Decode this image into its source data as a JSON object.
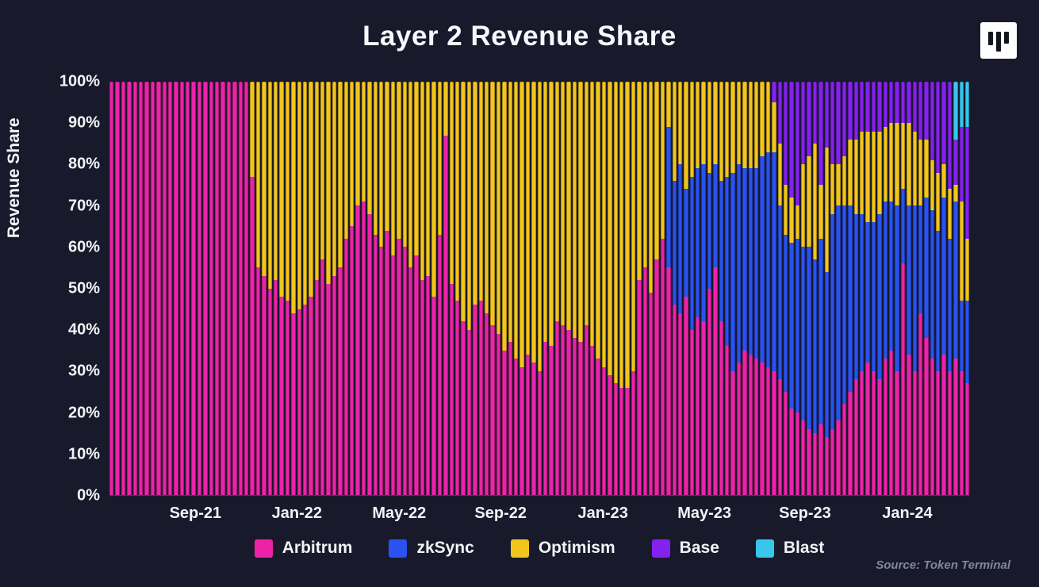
{
  "header": {
    "title": "Layer 2 Revenue Share",
    "logo_icon": "token-terminal-logo"
  },
  "footer": {
    "source": "Source: Token Terminal"
  },
  "colors": {
    "background": "#181A2C",
    "text": "#F7F8FC",
    "muted_text": "#80869C",
    "arbitrum": "#EC23A7",
    "zksync": "#2A52F0",
    "optimism": "#F2C51D",
    "base": "#8521EE",
    "blast": "#38C6EC"
  },
  "chart_data": {
    "type": "bar",
    "stacked": true,
    "stack_unit": "percent-of-total",
    "interval": "weekly",
    "title": "Layer 2 Revenue Share",
    "xlabel": "",
    "ylabel": "Revenue Share",
    "ylim": [
      0,
      100
    ],
    "grid": false,
    "legend_position": "bottom",
    "x_range": [
      "Jun-21",
      "Mar-24"
    ],
    "y_ticks": [
      "100%",
      "90%",
      "80%",
      "70%",
      "60%",
      "50%",
      "40%",
      "30%",
      "20%",
      "10%",
      "0%"
    ],
    "x_ticks": [
      {
        "label": "Sep-21",
        "pos": 0.1
      },
      {
        "label": "Jan-22",
        "pos": 0.218
      },
      {
        "label": "May-22",
        "pos": 0.337
      },
      {
        "label": "Sep-22",
        "pos": 0.455
      },
      {
        "label": "Jan-23",
        "pos": 0.574
      },
      {
        "label": "May-23",
        "pos": 0.692
      },
      {
        "label": "Sep-23",
        "pos": 0.809
      },
      {
        "label": "Jan-24",
        "pos": 0.928
      }
    ],
    "series": [
      {
        "name": "Arbitrum",
        "color": "#EC23A7",
        "values": [
          100,
          100,
          100,
          100,
          100,
          100,
          100,
          100,
          100,
          100,
          100,
          100,
          100,
          100,
          100,
          100,
          100,
          100,
          100,
          100,
          100,
          100,
          100,
          100,
          77,
          55,
          53,
          50,
          52,
          48,
          47,
          44,
          45,
          46,
          48,
          52,
          57,
          51,
          53,
          55,
          62,
          65,
          70,
          71,
          68,
          63,
          60,
          64,
          58,
          62,
          60,
          55,
          58,
          52,
          53,
          48,
          63,
          87,
          51,
          47,
          42,
          40,
          46,
          47,
          44,
          41,
          39,
          35,
          37,
          33,
          31,
          34,
          32,
          30,
          37,
          36,
          42,
          41,
          40,
          38,
          37,
          41,
          36,
          33,
          31,
          29,
          27,
          26,
          26,
          30,
          52,
          55,
          49,
          57,
          62,
          55,
          46,
          44,
          48,
          40,
          43,
          42,
          50,
          55,
          42,
          36,
          30,
          32,
          35,
          34,
          33,
          32,
          31,
          30,
          28,
          25,
          21,
          20,
          18,
          16,
          15,
          17,
          14,
          16,
          18,
          22,
          25,
          28,
          30,
          32,
          30,
          28,
          33,
          35,
          30,
          56,
          34,
          30,
          44,
          38,
          33,
          30,
          34,
          30,
          33,
          30,
          27
        ]
      },
      {
        "name": "zkSync",
        "color": "#2A52F0",
        "values": [
          0,
          0,
          0,
          0,
          0,
          0,
          0,
          0,
          0,
          0,
          0,
          0,
          0,
          0,
          0,
          0,
          0,
          0,
          0,
          0,
          0,
          0,
          0,
          0,
          0,
          0,
          0,
          0,
          0,
          0,
          0,
          0,
          0,
          0,
          0,
          0,
          0,
          0,
          0,
          0,
          0,
          0,
          0,
          0,
          0,
          0,
          0,
          0,
          0,
          0,
          0,
          0,
          0,
          0,
          0,
          0,
          0,
          0,
          0,
          0,
          0,
          0,
          0,
          0,
          0,
          0,
          0,
          0,
          0,
          0,
          0,
          0,
          0,
          0,
          0,
          0,
          0,
          0,
          0,
          0,
          0,
          0,
          0,
          0,
          0,
          0,
          0,
          0,
          0,
          0,
          0,
          0,
          0,
          0,
          0,
          34,
          30,
          36,
          26,
          37,
          36,
          38,
          28,
          25,
          34,
          41,
          48,
          48,
          44,
          45,
          46,
          50,
          52,
          53,
          42,
          38,
          40,
          42,
          42,
          44,
          42,
          45,
          40,
          52,
          52,
          48,
          45,
          40,
          38,
          34,
          36,
          40,
          38,
          36,
          40,
          18,
          36,
          40,
          26,
          34,
          36,
          34,
          38,
          32,
          38,
          17,
          20
        ]
      },
      {
        "name": "Optimism",
        "color": "#F2C51D",
        "values": [
          0,
          0,
          0,
          0,
          0,
          0,
          0,
          0,
          0,
          0,
          0,
          0,
          0,
          0,
          0,
          0,
          0,
          0,
          0,
          0,
          0,
          0,
          0,
          0,
          23,
          45,
          47,
          50,
          48,
          52,
          53,
          56,
          55,
          54,
          52,
          48,
          43,
          49,
          47,
          45,
          38,
          35,
          30,
          29,
          32,
          37,
          40,
          36,
          42,
          38,
          40,
          45,
          42,
          48,
          47,
          52,
          37,
          13,
          49,
          53,
          58,
          60,
          54,
          53,
          56,
          59,
          61,
          65,
          63,
          67,
          69,
          66,
          68,
          70,
          63,
          64,
          58,
          59,
          60,
          62,
          63,
          59,
          64,
          67,
          69,
          71,
          73,
          74,
          74,
          70,
          48,
          45,
          51,
          43,
          38,
          11,
          24,
          20,
          26,
          23,
          21,
          20,
          22,
          20,
          24,
          23,
          22,
          20,
          21,
          21,
          21,
          18,
          17,
          12,
          15,
          12,
          11,
          8,
          20,
          22,
          28,
          13,
          30,
          12,
          10,
          12,
          16,
          18,
          20,
          22,
          22,
          20,
          18,
          19,
          20,
          16,
          20,
          18,
          16,
          14,
          12,
          14,
          8,
          12,
          4,
          24,
          15
        ]
      },
      {
        "name": "Base",
        "color": "#8521EE",
        "values": [
          0,
          0,
          0,
          0,
          0,
          0,
          0,
          0,
          0,
          0,
          0,
          0,
          0,
          0,
          0,
          0,
          0,
          0,
          0,
          0,
          0,
          0,
          0,
          0,
          0,
          0,
          0,
          0,
          0,
          0,
          0,
          0,
          0,
          0,
          0,
          0,
          0,
          0,
          0,
          0,
          0,
          0,
          0,
          0,
          0,
          0,
          0,
          0,
          0,
          0,
          0,
          0,
          0,
          0,
          0,
          0,
          0,
          0,
          0,
          0,
          0,
          0,
          0,
          0,
          0,
          0,
          0,
          0,
          0,
          0,
          0,
          0,
          0,
          0,
          0,
          0,
          0,
          0,
          0,
          0,
          0,
          0,
          0,
          0,
          0,
          0,
          0,
          0,
          0,
          0,
          0,
          0,
          0,
          0,
          0,
          0,
          0,
          0,
          0,
          0,
          0,
          0,
          0,
          0,
          0,
          0,
          0,
          0,
          0,
          0,
          0,
          0,
          0,
          5,
          15,
          25,
          28,
          30,
          20,
          18,
          15,
          25,
          16,
          20,
          20,
          18,
          14,
          14,
          12,
          12,
          12,
          12,
          11,
          10,
          10,
          10,
          10,
          12,
          14,
          14,
          19,
          22,
          20,
          26,
          11,
          18,
          27
        ]
      },
      {
        "name": "Blast",
        "color": "#38C6EC",
        "values": [
          0,
          0,
          0,
          0,
          0,
          0,
          0,
          0,
          0,
          0,
          0,
          0,
          0,
          0,
          0,
          0,
          0,
          0,
          0,
          0,
          0,
          0,
          0,
          0,
          0,
          0,
          0,
          0,
          0,
          0,
          0,
          0,
          0,
          0,
          0,
          0,
          0,
          0,
          0,
          0,
          0,
          0,
          0,
          0,
          0,
          0,
          0,
          0,
          0,
          0,
          0,
          0,
          0,
          0,
          0,
          0,
          0,
          0,
          0,
          0,
          0,
          0,
          0,
          0,
          0,
          0,
          0,
          0,
          0,
          0,
          0,
          0,
          0,
          0,
          0,
          0,
          0,
          0,
          0,
          0,
          0,
          0,
          0,
          0,
          0,
          0,
          0,
          0,
          0,
          0,
          0,
          0,
          0,
          0,
          0,
          0,
          0,
          0,
          0,
          0,
          0,
          0,
          0,
          0,
          0,
          0,
          0,
          0,
          0,
          0,
          0,
          0,
          0,
          0,
          0,
          0,
          0,
          0,
          0,
          0,
          0,
          0,
          0,
          0,
          0,
          0,
          0,
          0,
          0,
          0,
          0,
          0,
          0,
          0,
          0,
          0,
          0,
          0,
          0,
          0,
          0,
          0,
          0,
          0,
          14,
          11,
          11
        ]
      }
    ]
  }
}
